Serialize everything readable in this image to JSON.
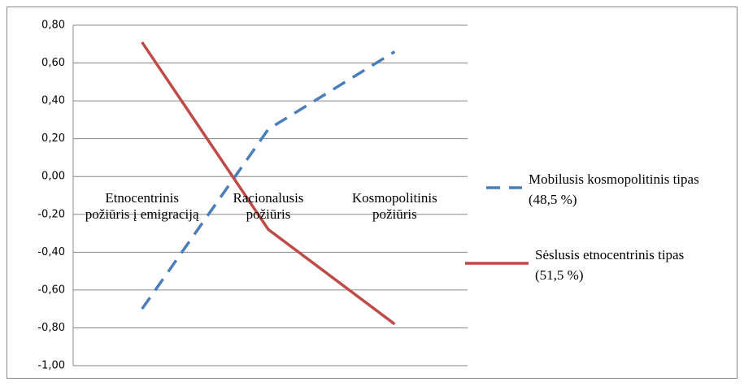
{
  "chart_data": {
    "type": "line",
    "categories": [
      "Etnocentrinis požiūris į emigraciją",
      "Racionalusis požiūris",
      "Kosmopolitinis požiūris"
    ],
    "series": [
      {
        "name": "Mobilusis kosmopolitinis tipas (48,5 %)",
        "color": "#4a7ebb",
        "dash": true,
        "values": [
          -0.7,
          0.25,
          0.66
        ]
      },
      {
        "name": "Sėslusis etnocentrinis tipas (51,5 %)",
        "color": "#be4b48",
        "dash": false,
        "values": [
          0.71,
          -0.28,
          -0.78
        ]
      }
    ],
    "ylim": [
      -1.0,
      0.8
    ],
    "yticks": [
      {
        "value": -1.0,
        "label": "-1,00"
      },
      {
        "value": -0.8,
        "label": "-0,80"
      },
      {
        "value": -0.6,
        "label": "-0,60"
      },
      {
        "value": -0.4,
        "label": "-0,40"
      },
      {
        "value": -0.2,
        "label": "-0,20"
      },
      {
        "value": 0.0,
        "label": "0,00"
      },
      {
        "value": 0.2,
        "label": "0,20"
      },
      {
        "value": 0.4,
        "label": "0,40"
      },
      {
        "value": 0.6,
        "label": "0,60"
      },
      {
        "value": 0.8,
        "label": "0,80"
      }
    ],
    "grid": true,
    "legend": "right"
  }
}
